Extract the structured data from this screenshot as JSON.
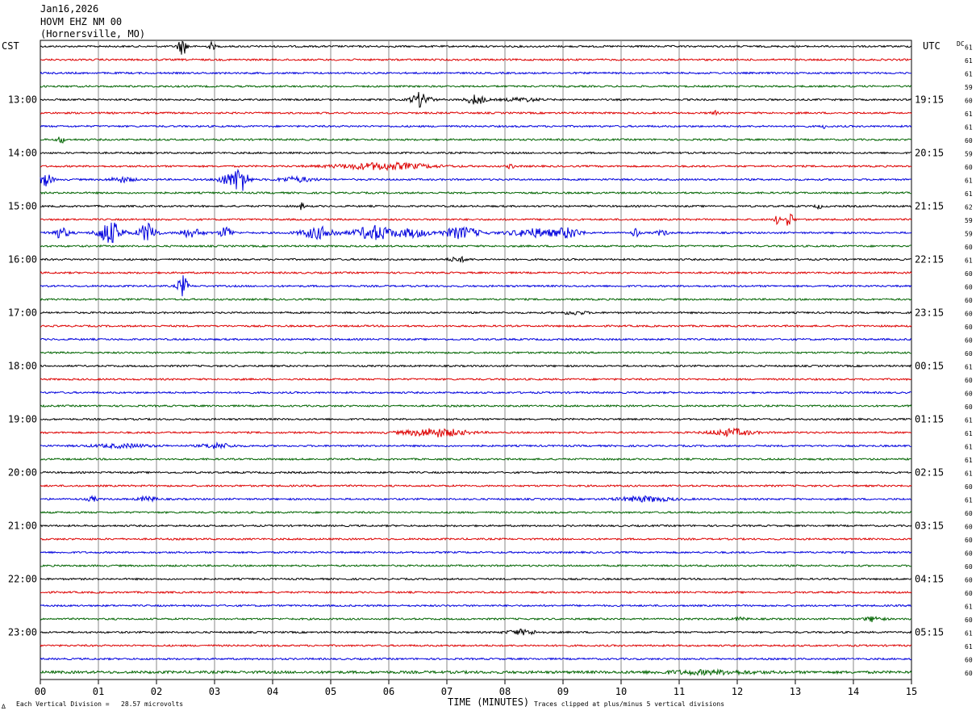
{
  "header": {
    "date": "Jan16,2026",
    "station": "HOVM EHZ NM 00",
    "location": "(Hornersville, MO)"
  },
  "left_timezone": "CST",
  "right_timezone": "UTC",
  "dc_label": "DC",
  "footer": {
    "scale_note": "Each Vertical Division =   28.57 microvolts",
    "clip_note": "Traces clipped at plus/minus 5 vertical divisions",
    "corner_mark": "∆"
  },
  "colors": {
    "trace_cycle": [
      "#000000",
      "#dd0000",
      "#0000dd",
      "#006400"
    ],
    "grid": "#888888"
  },
  "chart_data": {
    "type": "helicorder",
    "xlabel": "TIME (MINUTES)",
    "xlim": [
      0,
      15
    ],
    "x_ticks": [
      "00",
      "01",
      "02",
      "03",
      "04",
      "05",
      "06",
      "07",
      "08",
      "09",
      "10",
      "11",
      "12",
      "13",
      "14",
      "15"
    ],
    "minutes_per_line": 15,
    "line_count": 48,
    "cst_hour_labels": [
      "13:00",
      "14:00",
      "15:00",
      "16:00",
      "17:00",
      "18:00",
      "19:00",
      "20:00",
      "21:00",
      "22:00",
      "23:00"
    ],
    "utc_hour_labels": [
      "19:15",
      "20:15",
      "21:15",
      "22:15",
      "23:15",
      "00:15",
      "01:15",
      "02:15",
      "03:15",
      "04:15",
      "05:15"
    ],
    "first_labeled_line": 4,
    "dc_offsets": [
      61,
      61,
      61,
      59,
      60,
      61,
      61,
      60,
      59,
      60,
      61,
      61,
      62,
      59,
      59,
      60,
      61,
      60,
      60,
      60,
      60,
      60,
      60,
      60,
      61,
      60,
      60,
      60,
      61,
      61,
      61,
      61,
      61,
      60,
      61,
      60,
      60,
      60,
      60,
      60,
      60,
      60,
      61,
      60,
      61,
      61,
      60,
      60
    ],
    "events": [
      {
        "line": 0,
        "minute": 2.45,
        "amp": 10,
        "width": 0.08
      },
      {
        "line": 0,
        "minute": 2.95,
        "amp": 5,
        "width": 0.05
      },
      {
        "line": 4,
        "minute": 6.55,
        "amp": 9,
        "width": 0.15
      },
      {
        "line": 4,
        "minute": 7.5,
        "amp": 6,
        "width": 0.15
      },
      {
        "line": 4,
        "minute": 8.3,
        "amp": 2,
        "width": 0.3
      },
      {
        "line": 5,
        "minute": 11.6,
        "amp": 3,
        "width": 0.05
      },
      {
        "line": 6,
        "minute": 13.5,
        "amp": 2,
        "width": 0.05
      },
      {
        "line": 7,
        "minute": 0.35,
        "amp": 6,
        "width": 0.05
      },
      {
        "line": 9,
        "minute": 5.9,
        "amp": 4,
        "width": 0.8
      },
      {
        "line": 9,
        "minute": 8.1,
        "amp": 3,
        "width": 0.05
      },
      {
        "line": 10,
        "minute": 0.1,
        "amp": 8,
        "width": 0.1
      },
      {
        "line": 10,
        "minute": 1.4,
        "amp": 3,
        "width": 0.2
      },
      {
        "line": 10,
        "minute": 3.2,
        "amp": 6,
        "width": 0.15
      },
      {
        "line": 10,
        "minute": 3.45,
        "amp": 18,
        "width": 0.12
      },
      {
        "line": 10,
        "minute": 4.4,
        "amp": 3,
        "width": 0.3
      },
      {
        "line": 12,
        "minute": 4.5,
        "amp": 4,
        "width": 0.05
      },
      {
        "line": 12,
        "minute": 13.4,
        "amp": 3,
        "width": 0.05
      },
      {
        "line": 13,
        "minute": 12.7,
        "amp": 6,
        "width": 0.05
      },
      {
        "line": 13,
        "minute": 12.9,
        "amp": 10,
        "width": 0.06
      },
      {
        "line": 14,
        "minute": 0.35,
        "amp": 6,
        "width": 0.15
      },
      {
        "line": 14,
        "minute": 1.2,
        "amp": 14,
        "width": 0.2
      },
      {
        "line": 14,
        "minute": 1.85,
        "amp": 12,
        "width": 0.15
      },
      {
        "line": 14,
        "minute": 2.6,
        "amp": 5,
        "width": 0.2
      },
      {
        "line": 14,
        "minute": 3.2,
        "amp": 8,
        "width": 0.1
      },
      {
        "line": 14,
        "minute": 4.8,
        "amp": 7,
        "width": 0.3
      },
      {
        "line": 14,
        "minute": 5.75,
        "amp": 9,
        "width": 0.3
      },
      {
        "line": 14,
        "minute": 6.4,
        "amp": 5,
        "width": 0.3
      },
      {
        "line": 14,
        "minute": 7.25,
        "amp": 7,
        "width": 0.3
      },
      {
        "line": 14,
        "minute": 8.5,
        "amp": 5,
        "width": 0.4
      },
      {
        "line": 14,
        "minute": 9.1,
        "amp": 6,
        "width": 0.2
      },
      {
        "line": 14,
        "minute": 10.25,
        "amp": 7,
        "width": 0.05
      },
      {
        "line": 14,
        "minute": 10.7,
        "amp": 3,
        "width": 0.1
      },
      {
        "line": 16,
        "minute": 7.2,
        "amp": 3,
        "width": 0.15
      },
      {
        "line": 18,
        "minute": 2.45,
        "amp": 13,
        "width": 0.08
      },
      {
        "line": 20,
        "minute": 9.2,
        "amp": 2,
        "width": 0.2
      },
      {
        "line": 29,
        "minute": 6.8,
        "amp": 5,
        "width": 0.5
      },
      {
        "line": 29,
        "minute": 11.9,
        "amp": 4,
        "width": 0.35
      },
      {
        "line": 30,
        "minute": 3.05,
        "amp": 3,
        "width": 0.25
      },
      {
        "line": 30,
        "minute": 1.4,
        "amp": 2,
        "width": 0.5
      },
      {
        "line": 34,
        "minute": 1.85,
        "amp": 3,
        "width": 0.15
      },
      {
        "line": 34,
        "minute": 10.4,
        "amp": 3,
        "width": 0.45
      },
      {
        "line": 34,
        "minute": 0.9,
        "amp": 3,
        "width": 0.08
      },
      {
        "line": 43,
        "minute": 12.05,
        "amp": 2,
        "width": 0.1
      },
      {
        "line": 43,
        "minute": 14.35,
        "amp": 3,
        "width": 0.15
      },
      {
        "line": 44,
        "minute": 8.3,
        "amp": 3,
        "width": 0.25
      },
      {
        "line": 47,
        "minute": 11.5,
        "amp": 2,
        "width": 0.8
      }
    ]
  }
}
